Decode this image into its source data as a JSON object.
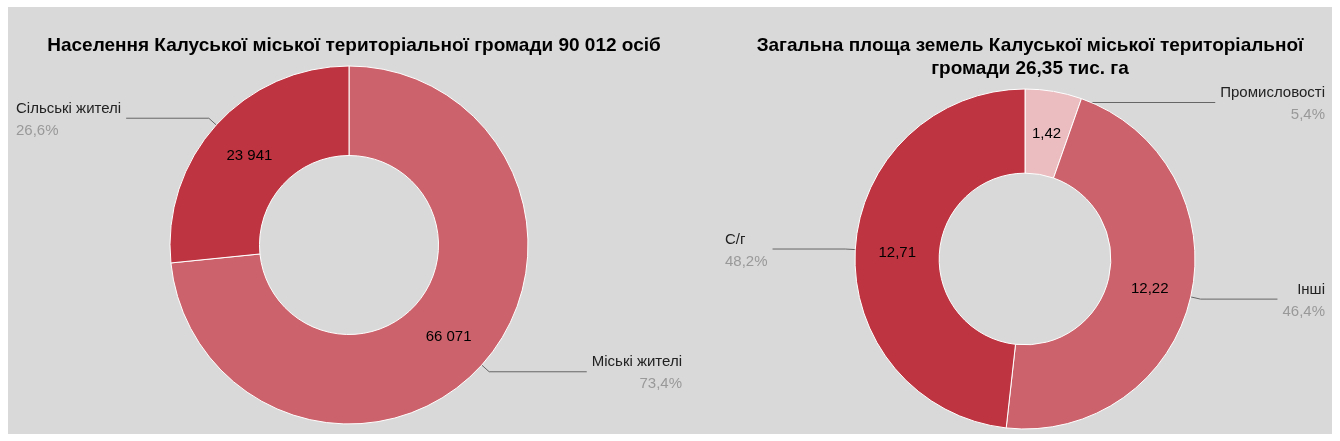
{
  "chart_data": [
    {
      "type": "donut",
      "title": "Населення Калуської міської територіальної громади 90 012 осіб",
      "categories": [
        "Міські жителі",
        "Сільські жителі"
      ],
      "values": [
        66071,
        23941
      ],
      "colors": [
        "#cc626b",
        "#be3440"
      ],
      "value_labels": [
        "66 071",
        "23 941"
      ],
      "annotations": [
        {
          "text": "73,4%",
          "x": "Міські жителі"
        },
        {
          "text": "26,6%",
          "x": "Сільські жителі"
        }
      ]
    },
    {
      "type": "donut",
      "title": "Загальна площа земель Калуської міської територіальної громади 26,35 тис. га",
      "categories": [
        "Промисловості",
        "Інші",
        "С/г"
      ],
      "values": [
        1.42,
        12.22,
        12.71
      ],
      "colors": [
        "#ebbdc0",
        "#cc626b",
        "#be3440"
      ],
      "value_labels": [
        "1,42",
        "12,22",
        "12,71"
      ],
      "annotations": [
        {
          "text": "5,4%",
          "x": "Промисловості"
        },
        {
          "text": "46,4%",
          "x": "Інші"
        },
        {
          "text": "48,2%",
          "x": "С/г"
        }
      ]
    }
  ]
}
